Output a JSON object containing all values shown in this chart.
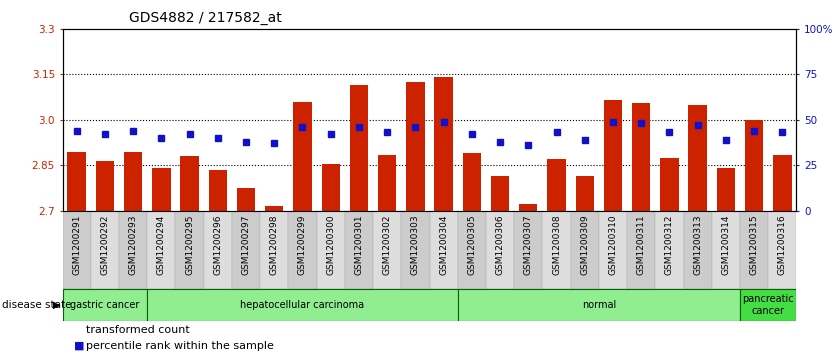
{
  "title": "GDS4882 / 217582_at",
  "samples": [
    "GSM1200291",
    "GSM1200292",
    "GSM1200293",
    "GSM1200294",
    "GSM1200295",
    "GSM1200296",
    "GSM1200297",
    "GSM1200298",
    "GSM1200299",
    "GSM1200300",
    "GSM1200301",
    "GSM1200302",
    "GSM1200303",
    "GSM1200304",
    "GSM1200305",
    "GSM1200306",
    "GSM1200307",
    "GSM1200308",
    "GSM1200309",
    "GSM1200310",
    "GSM1200311",
    "GSM1200312",
    "GSM1200313",
    "GSM1200314",
    "GSM1200315",
    "GSM1200316"
  ],
  "transformed_count": [
    2.895,
    2.865,
    2.895,
    2.84,
    2.88,
    2.835,
    2.775,
    2.715,
    3.06,
    2.855,
    3.115,
    2.885,
    3.125,
    3.14,
    2.89,
    2.815,
    2.72,
    2.87,
    2.815,
    3.065,
    3.055,
    2.875,
    3.05,
    2.84,
    3.0,
    2.885
  ],
  "percentile_rank": [
    44,
    42,
    44,
    40,
    42,
    40,
    38,
    37,
    46,
    42,
    46,
    43,
    46,
    49,
    42,
    38,
    36,
    43,
    39,
    49,
    48,
    43,
    47,
    39,
    44,
    43
  ],
  "disease_groups": [
    {
      "label": "gastric cancer",
      "start": 0,
      "end": 3,
      "color": "#90EE90"
    },
    {
      "label": "hepatocellular carcinoma",
      "start": 3,
      "end": 14,
      "color": "#90EE90"
    },
    {
      "label": "normal",
      "start": 14,
      "end": 24,
      "color": "#90EE90"
    },
    {
      "label": "pancreatic\ncancer",
      "start": 24,
      "end": 26,
      "color": "#44DD44"
    }
  ],
  "ylim_left": [
    2.7,
    3.3
  ],
  "ylim_right": [
    0,
    100
  ],
  "yticks_left": [
    2.7,
    2.85,
    3.0,
    3.15,
    3.3
  ],
  "yticks_right": [
    0,
    25,
    50,
    75,
    100
  ],
  "ytick_labels_right": [
    "0",
    "25",
    "50",
    "75",
    "100%"
  ],
  "hlines": [
    2.85,
    3.0,
    3.15
  ],
  "bar_color": "#CC2200",
  "dot_color": "#1111CC",
  "bar_bottom": 2.7,
  "bar_width": 0.65,
  "xtick_bg": "#D8D8D8",
  "title_fontsize": 10,
  "tick_fontsize": 7.5,
  "legend_fontsize": 8,
  "group_border_color": "#008800"
}
